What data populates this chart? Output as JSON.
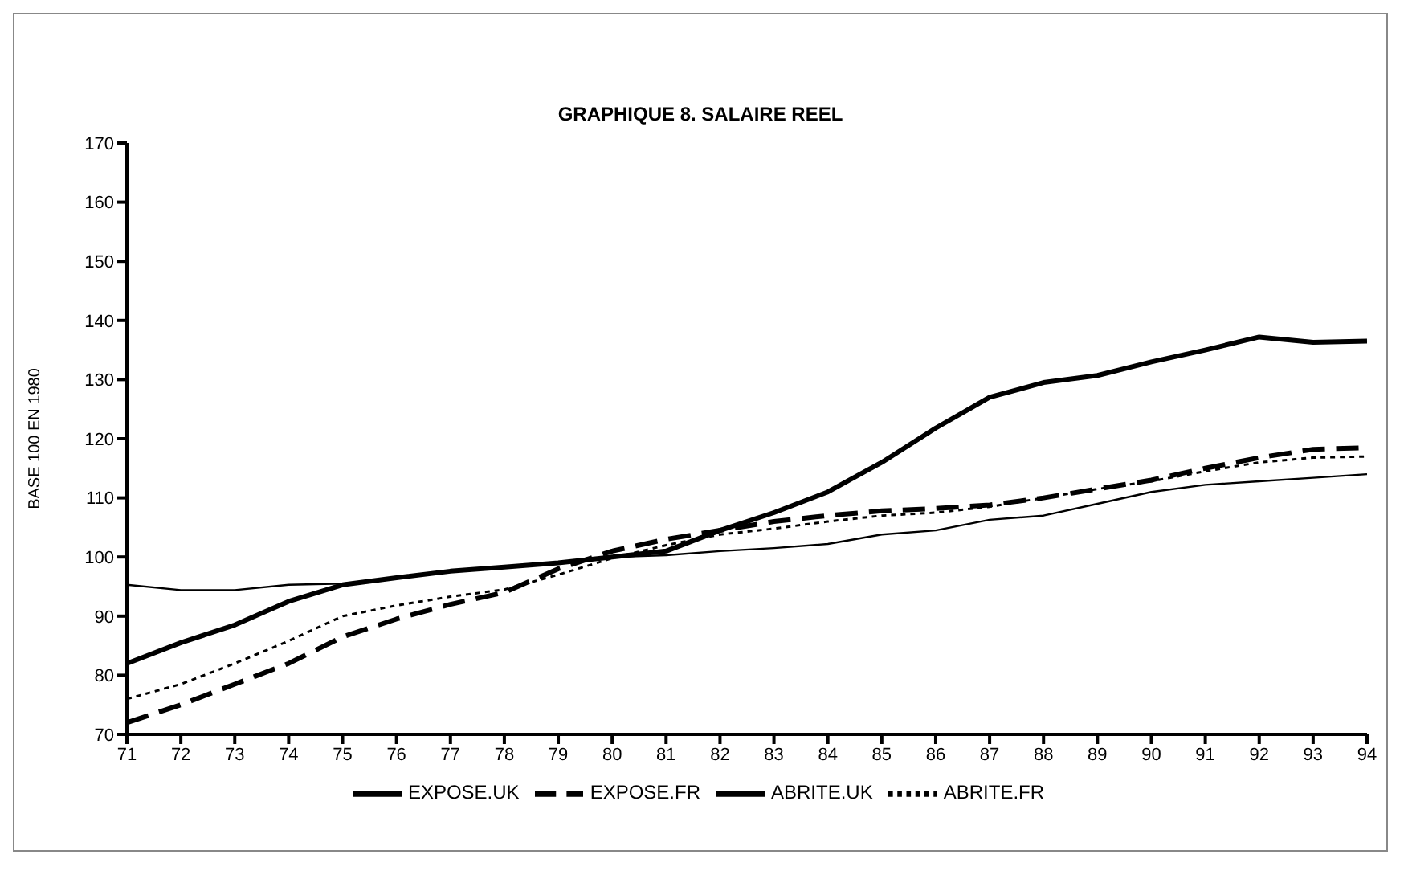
{
  "chart_data": {
    "type": "line",
    "title": "GRAPHIQUE 8.  SALAIRE REEL",
    "ylabel": "BASE 100 EN 1980",
    "categories": [
      "71",
      "72",
      "73",
      "74",
      "75",
      "76",
      "77",
      "78",
      "79",
      "80",
      "81",
      "82",
      "83",
      "84",
      "85",
      "86",
      "87",
      "88",
      "89",
      "90",
      "91",
      "92",
      "93",
      "94"
    ],
    "series": [
      {
        "name": "EXPOSE.UK",
        "color": "#000000",
        "line_style": "solid",
        "values": [
          82,
          85.5,
          88.5,
          92.5,
          95.3,
          96.5,
          97.6,
          98.3,
          99,
          100,
          101,
          104.5,
          107.5,
          111,
          116,
          121.8,
          127,
          129.5,
          130.7,
          133,
          135,
          137.2,
          136.3,
          136.5
        ]
      },
      {
        "name": "EXPOSE.FR",
        "color": "#000000",
        "line_style": "dashed",
        "values": [
          72,
          75,
          78.5,
          82,
          86.5,
          89.5,
          92,
          94,
          98,
          101,
          103,
          104.5,
          106,
          107,
          107.8,
          108.2,
          108.8,
          110,
          111.5,
          113,
          115,
          116.8,
          118.2,
          118.5
        ]
      },
      {
        "name": "ABRITE.UK",
        "color": "#000000",
        "line_style": "solid",
        "values": [
          95.3,
          94.4,
          94.4,
          95.3,
          95.5,
          96.5,
          97.5,
          98.3,
          99,
          100,
          100.3,
          101,
          101.5,
          102.2,
          103.8,
          104.5,
          106.3,
          107,
          109,
          111,
          112.2,
          112.8,
          113.4,
          114
        ]
      },
      {
        "name": "ABRITE.FR",
        "color": "#000000",
        "line_style": "dotted",
        "values": [
          76,
          78.5,
          82,
          85.8,
          90,
          91.8,
          93.3,
          94.5,
          97,
          99.8,
          102,
          103.8,
          104.8,
          106,
          107,
          107.5,
          108.5,
          110,
          111.5,
          112.8,
          114.5,
          116,
          116.8,
          117
        ]
      }
    ],
    "ylim": [
      70,
      170
    ],
    "yticks": [
      70,
      80,
      90,
      100,
      110,
      120,
      130,
      140,
      150,
      160,
      170
    ],
    "grid": false,
    "legend": "bottom",
    "marker": "none"
  }
}
